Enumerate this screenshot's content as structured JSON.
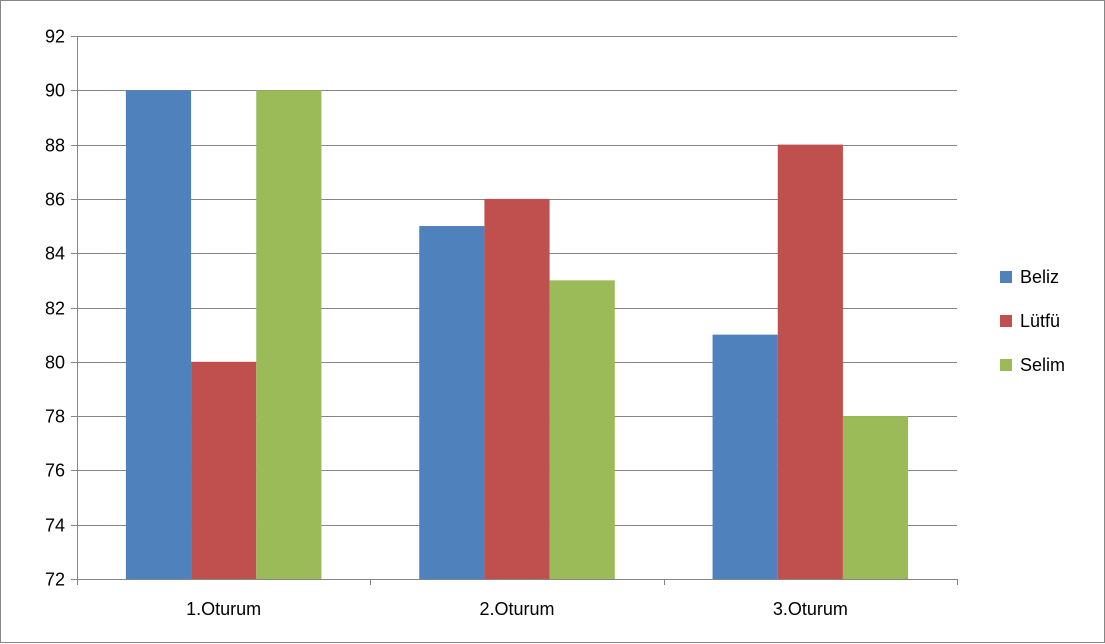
{
  "chart_data": {
    "type": "bar",
    "title": "",
    "xlabel": "",
    "ylabel": "",
    "categories": [
      "1.Oturum",
      "2.Oturum",
      "3.Oturum"
    ],
    "series": [
      {
        "name": "Beliz",
        "color": "#4f81bd",
        "values": [
          90,
          85,
          81
        ]
      },
      {
        "name": "Lütfü",
        "color": "#c0504d",
        "values": [
          80,
          86,
          88
        ]
      },
      {
        "name": "Selim",
        "color": "#9bbb59",
        "values": [
          90,
          83,
          78
        ]
      }
    ],
    "ylim": [
      72,
      92
    ],
    "yticks": [
      72,
      74,
      76,
      78,
      80,
      82,
      84,
      86,
      88,
      90,
      92
    ],
    "grid": true,
    "legend_position": "right"
  }
}
